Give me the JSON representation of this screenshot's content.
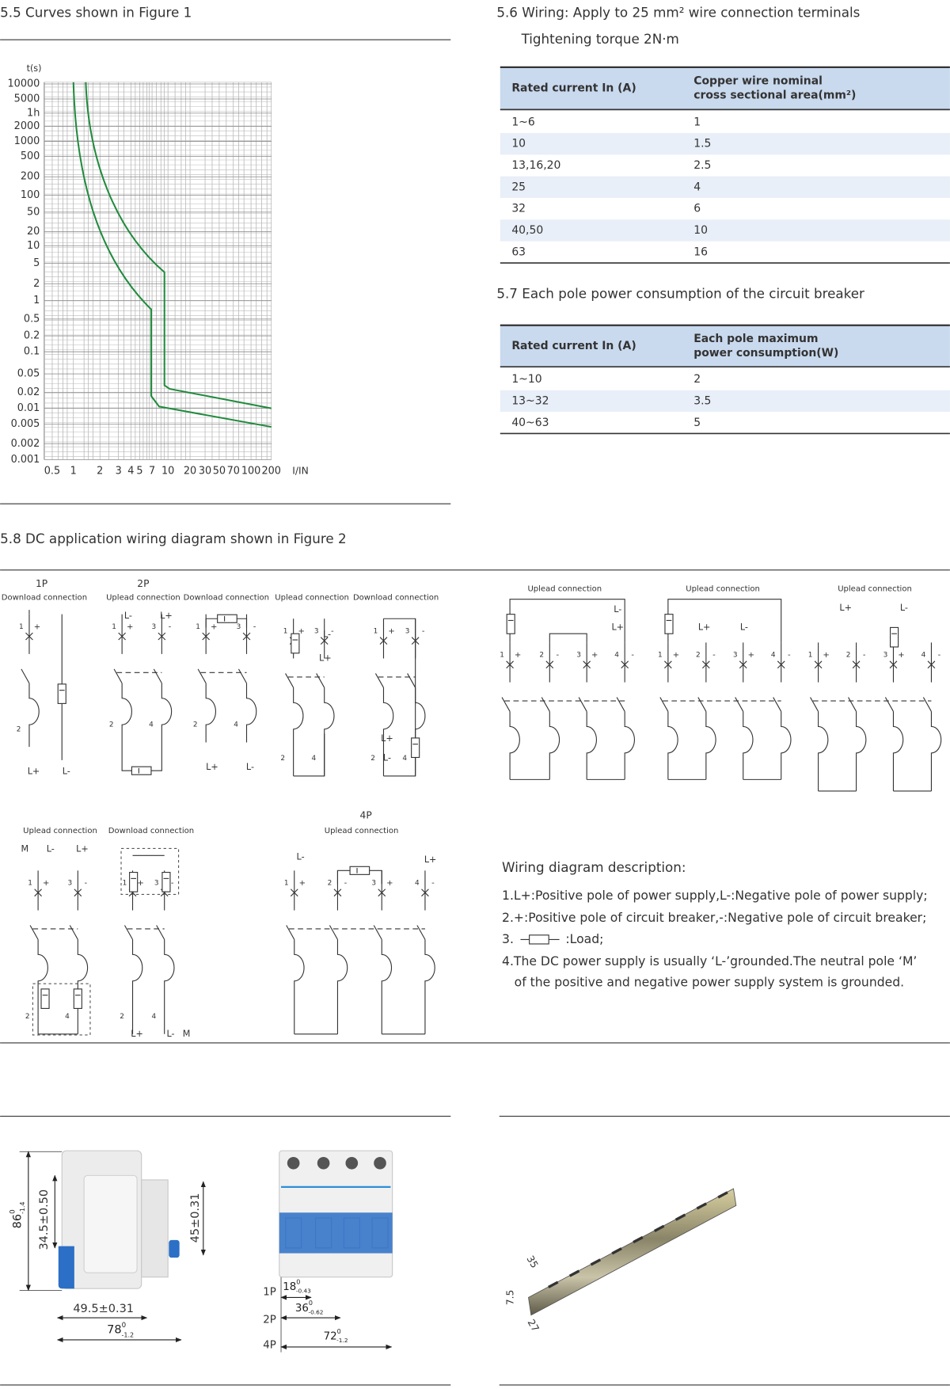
{
  "curves": {
    "title": "5.5 Curves shown in Figure 1",
    "y_axis_label": "t(s)",
    "y_labels": [
      "10000",
      "5000",
      "1h",
      "2000",
      "1000",
      "500",
      "200",
      "100",
      "50",
      "20",
      "10",
      "5",
      "2",
      "1",
      "0.5",
      "0.2",
      "0.1",
      "0.05",
      "0.02",
      "0.01",
      "0.005",
      "0.002",
      "0.001"
    ],
    "x_labels": [
      "0.5",
      "1",
      "2",
      "3",
      "4",
      "5",
      "7",
      "10",
      "20",
      "30",
      "50",
      "70",
      "100",
      "200"
    ],
    "x_axis_label": "I/IN"
  },
  "wiring": {
    "title": "5.6 Wiring: Apply to 25 mm² wire connection terminals",
    "subtitle": "Tightening torque 2N·m",
    "header": [
      "Rated current In (A)",
      [
        "Copper wire nominal",
        "cross sectional area(mm²)"
      ]
    ],
    "rows": [
      [
        "1~6",
        "1"
      ],
      [
        "10",
        "1.5"
      ],
      [
        "13,16,20",
        "2.5"
      ],
      [
        "25",
        "4"
      ],
      [
        "32",
        "6"
      ],
      [
        "40,50",
        "10"
      ],
      [
        "63",
        "16"
      ]
    ]
  },
  "power": {
    "title": "5.7 Each pole power consumption of the circuit breaker",
    "header": [
      "Rated current In (A)",
      [
        "Each pole maximum",
        "power consumption(W)"
      ]
    ],
    "rows": [
      [
        "1~10",
        "2"
      ],
      [
        "13~32",
        "3.5"
      ],
      [
        "40~63",
        "5"
      ]
    ]
  },
  "dc": {
    "title": "5.8 DC application wiring diagram shown in Figure 2",
    "pole_types": [
      "1P",
      "2P",
      "4P"
    ],
    "connections": {
      "up": "Uplead connection",
      "down": "Download connection"
    },
    "symbols": {
      "plus": "+",
      "minus": "-",
      "pos": "L+",
      "neg": "L-",
      "neutral": "M"
    },
    "pole_numbers": [
      "1",
      "2",
      "3",
      "4"
    ],
    "description": {
      "title": "Wiring diagram description:",
      "items": [
        "1.L+:Positive pole of power supply,L-:Negative pole of power supply;",
        "2.+:Positive pole of circuit breaker,-:Negative pole of circuit breaker;"
      ],
      "item3_number": "3.",
      "item3_text": ":Load;",
      "item4": [
        "4.The DC power supply is usually ‘L-’grounded.The neutral pole ‘M’",
        "of the positive and negative power supply system is grounded."
      ]
    }
  },
  "dimensions": {
    "single": {
      "height": {
        "main": "86",
        "upper": "0",
        "lower": "-1.4"
      },
      "front_height": "34.5±0.50",
      "rear_height": "45±0.31",
      "depth": "49.5±0.31",
      "total_depth": {
        "main": "78",
        "upper": "0",
        "lower": "-1.2"
      }
    },
    "multi": {
      "labels": [
        "1P",
        "2P",
        "4P"
      ],
      "widths": [
        {
          "main": "18",
          "upper": "0",
          "lower": "-0.43"
        },
        {
          "main": "36",
          "upper": "0",
          "lower": "-0.62"
        },
        {
          "main": "72",
          "upper": "0",
          "lower": "-1.2"
        }
      ]
    },
    "rail": {
      "width": "35",
      "height": "7.5",
      "inner": "27"
    }
  }
}
